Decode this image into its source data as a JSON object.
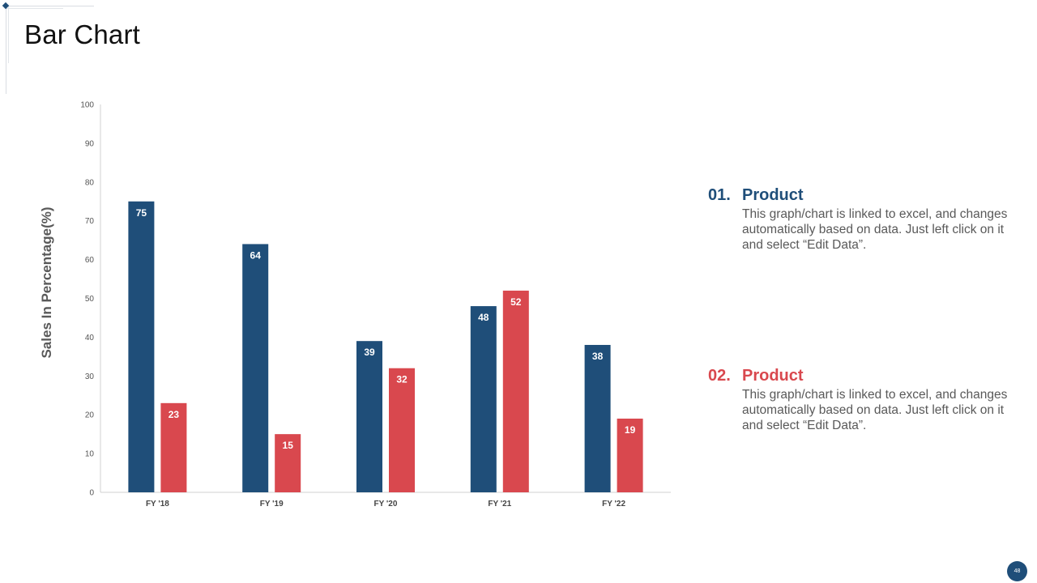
{
  "slide": {
    "title": "Bar Chart",
    "page_number": "48"
  },
  "colors": {
    "series1": "#1f4e79",
    "series2": "#d9484e",
    "axis": "#d0d0d0"
  },
  "legend": [
    {
      "number": "01.",
      "heading": "Product",
      "description": "This graph/chart is linked to excel, and changes automatically based on data. Just left click on it and select “Edit Data”.",
      "color": "#1f4e79"
    },
    {
      "number": "02.",
      "heading": "Product",
      "description": "This graph/chart is linked to excel, and changes automatically based on data. Just left click on it and select “Edit Data”.",
      "color": "#d9484e"
    }
  ],
  "chart_data": {
    "type": "bar",
    "title": "Bar Chart",
    "xlabel": "",
    "ylabel": "Sales In Percentage(%)",
    "ylim": [
      0,
      100
    ],
    "yticks": [
      0,
      10,
      20,
      30,
      40,
      50,
      60,
      70,
      80,
      90,
      100
    ],
    "grid": false,
    "categories": [
      "FY '18",
      "FY '19",
      "FY '20",
      "FY '21",
      "FY '22"
    ],
    "series": [
      {
        "name": "Product 01",
        "values": [
          75,
          64,
          39,
          48,
          38
        ]
      },
      {
        "name": "Product 02",
        "values": [
          23,
          15,
          32,
          52,
          19
        ]
      }
    ]
  }
}
